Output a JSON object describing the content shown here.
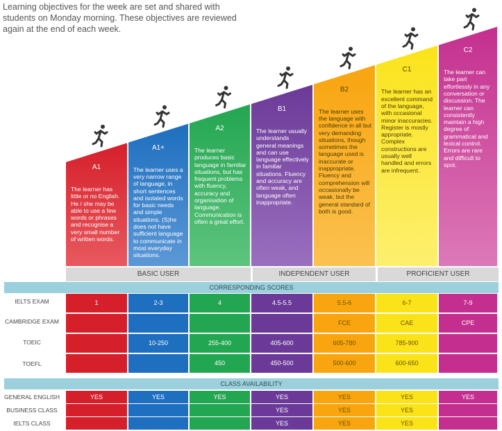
{
  "intro": "Learning objectives for the week are set and shared with students on Monday morning. These objectives are reviewed again at the end of each week.",
  "levels": [
    {
      "name": "A1",
      "color": "#d5202b",
      "text": "The learner has little or no English. He / she may be able to use a few words or phrases and recognise a very small number of written words."
    },
    {
      "name": "A1+",
      "color": "#1e6fbf",
      "text": "The learner uses a very narrow range of language, in short sentences and isolated words for basic needs and simple situations. (S)he does not have sufficient language to communicate in most everyday situations."
    },
    {
      "name": "A2",
      "color": "#23a651",
      "text": "The learner produces basic language in familiar situations, but has frequent problems with fluency, accuracy and organisation of language. Communication is often a great effort."
    },
    {
      "name": "B1",
      "color": "#6b3a98",
      "text": "The learner usually understands general meanings and can use language effectively in familiar situations. Fluency and accuracy are often weak, and language often inappropriate."
    },
    {
      "name": "B2",
      "color": "#f8a50f",
      "text": "The learner uses the language with confidence in all but very demanding situations, though sometimes the language used is inaccurate or inappropriate. Fluency and comprehension will occasionally be weak, but the general standard of both is good."
    },
    {
      "name": "C1",
      "color": "#fbe31a",
      "text": "The learner has an excellent command of the language, with occasional minor inaccuracies. Register is mostly appropriate. Complex constructions are usually well handled and errors are infrequent."
    },
    {
      "name": "C2",
      "color": "#c42f8f",
      "text": "The learner can take part effortlessly in any conversation or discussion. The learner can consistently maintain a high degree of grammatical and lexical control. Errors are rare and difficult to spot."
    }
  ],
  "groups": [
    "BASIC USER",
    "INDEPENDENT USER",
    "PROFICIENT USER"
  ],
  "sections": {
    "scores": "CORRESPONDING SCORES",
    "availability": "CLASS AVAILABILITY"
  },
  "score_rows": [
    {
      "label": "IELTS EXAM",
      "values": [
        "1",
        "2-3",
        "4",
        "4.5-5.5",
        "5.5-6",
        "6-7",
        "7-9"
      ]
    },
    {
      "label": "CAMBRIDGE EXAM",
      "values": [
        "",
        "",
        "",
        "",
        "FCE",
        "CAE",
        "CPE"
      ]
    },
    {
      "label": "TOEIC",
      "values": [
        "",
        "10-250",
        "255-400",
        "405-600",
        "605-780",
        "785-900",
        ""
      ]
    },
    {
      "label": "TOEFL",
      "values": [
        "",
        "",
        "450",
        "450-500",
        "500-600",
        "600-650",
        ""
      ]
    }
  ],
  "class_rows": [
    {
      "label": "GENERAL ENGLISH",
      "values": [
        "YES",
        "YES",
        "YES",
        "YES",
        "YES",
        "YES",
        "YES"
      ]
    },
    {
      "label": "BUSINESS CLASS",
      "values": [
        "",
        "",
        "",
        "YES",
        "YES",
        "YES",
        ""
      ]
    },
    {
      "label": "IELTS CLASS",
      "values": [
        "",
        "",
        "",
        "YES",
        "YES",
        "YES",
        ""
      ]
    }
  ],
  "chart_data": {
    "type": "table",
    "title": "",
    "categories": [
      "A1",
      "A1+",
      "A2",
      "B1",
      "B2",
      "C1",
      "C2"
    ],
    "series": [
      {
        "name": "IELTS EXAM",
        "values": [
          "1",
          "2-3",
          "4",
          "4.5-5.5",
          "5.5-6",
          "6-7",
          "7-9"
        ]
      },
      {
        "name": "CAMBRIDGE EXAM",
        "values": [
          "",
          "",
          "",
          "",
          "FCE",
          "CAE",
          "CPE"
        ]
      },
      {
        "name": "TOEIC",
        "values": [
          "",
          "10-250",
          "255-400",
          "405-600",
          "605-780",
          "785-900",
          ""
        ]
      },
      {
        "name": "TOEFL",
        "values": [
          "",
          "",
          "450",
          "450-500",
          "500-600",
          "600-650",
          ""
        ]
      },
      {
        "name": "GENERAL ENGLISH",
        "values": [
          "YES",
          "YES",
          "YES",
          "YES",
          "YES",
          "YES",
          "YES"
        ]
      },
      {
        "name": "BUSINESS CLASS",
        "values": [
          "",
          "",
          "",
          "YES",
          "YES",
          "YES",
          ""
        ]
      },
      {
        "name": "IELTS CLASS",
        "values": [
          "",
          "",
          "",
          "YES",
          "YES",
          "YES",
          ""
        ]
      }
    ]
  }
}
